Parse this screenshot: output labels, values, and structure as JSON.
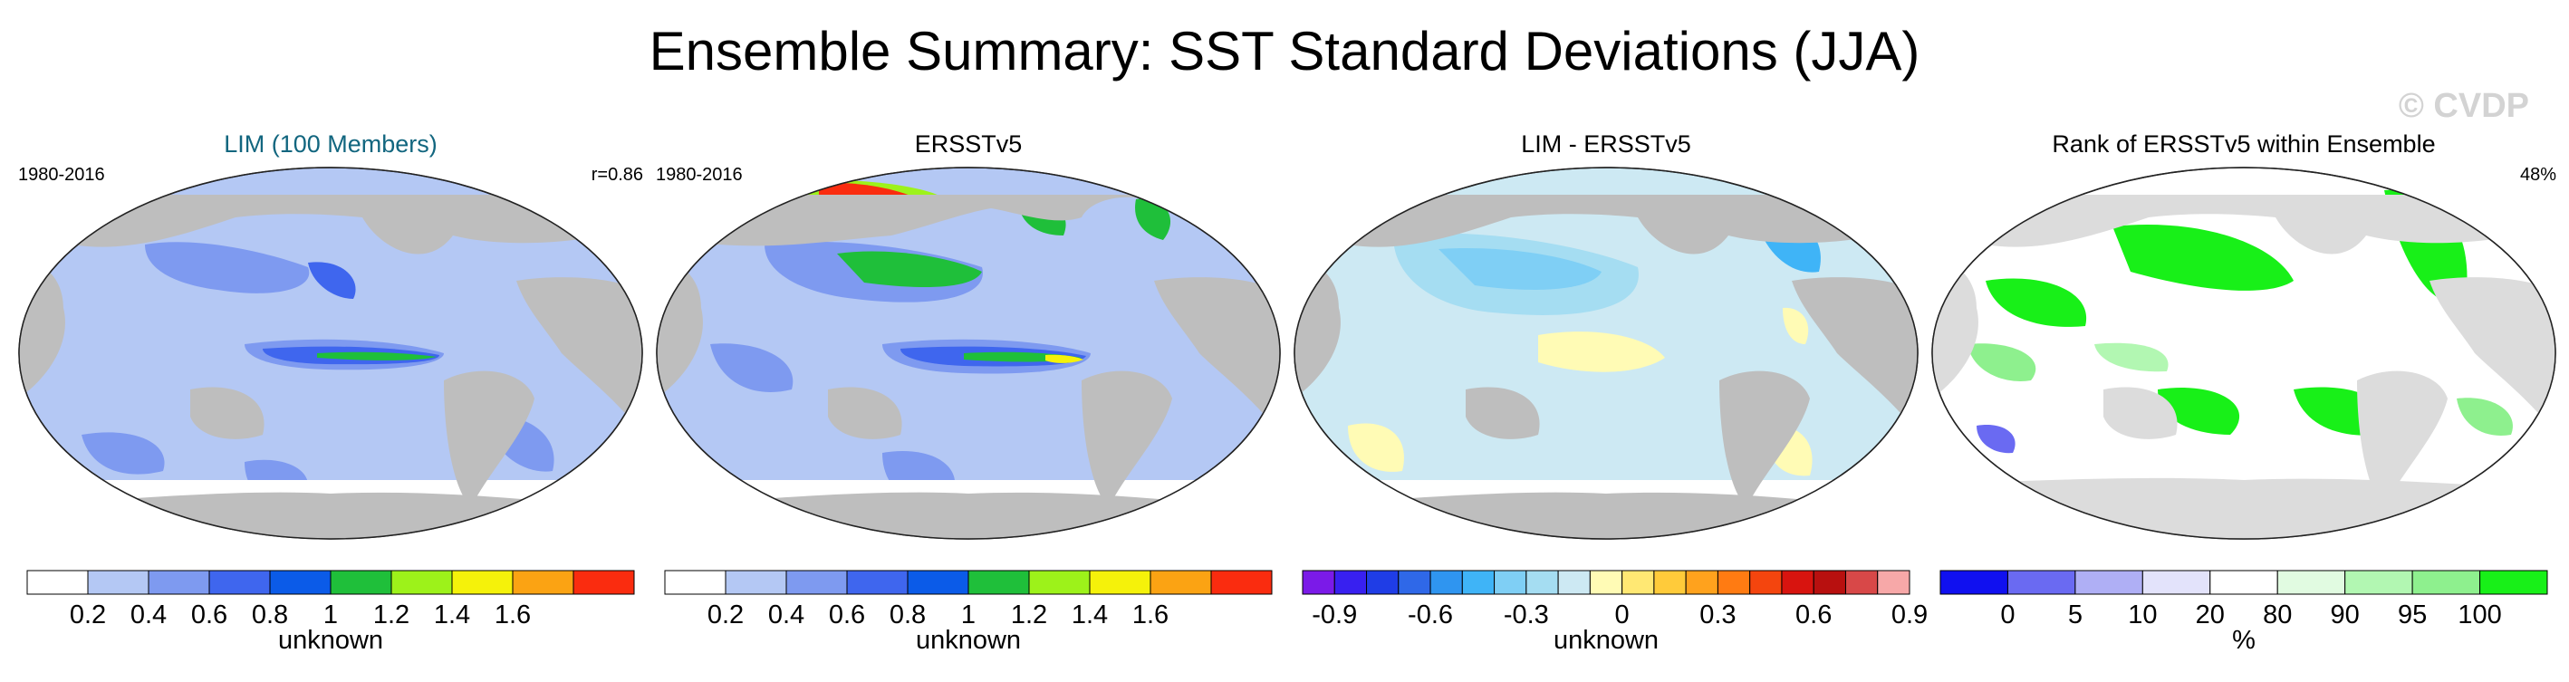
{
  "title": "Ensemble Summary: SST Standard Deviations (JJA)",
  "watermark": "© CVDP",
  "panels": [
    {
      "title": "LIM (100 Members)",
      "left_label": "1980-2016",
      "right_label": "r=0.86",
      "colorbar_unit": "unknown",
      "colorbar_ticks": [
        "0.2",
        "0.4",
        "0.6",
        "0.8",
        "1",
        "1.2",
        "1.4",
        "1.6"
      ],
      "colorbar_colors": [
        "#ffffff",
        "#b4c8f4",
        "#7e9af0",
        "#3f66ee",
        "#0b5be8",
        "#1fbf3a",
        "#9df21a",
        "#f5f20a",
        "#fba313",
        "#fa2c0f"
      ]
    },
    {
      "title": "ERSSTv5",
      "left_label": "1980-2016",
      "right_label": "",
      "colorbar_unit": "unknown",
      "colorbar_ticks": [
        "0.2",
        "0.4",
        "0.6",
        "0.8",
        "1",
        "1.2",
        "1.4",
        "1.6"
      ],
      "colorbar_colors": [
        "#ffffff",
        "#b4c8f4",
        "#7e9af0",
        "#3f66ee",
        "#0b5be8",
        "#1fbf3a",
        "#9df21a",
        "#f5f20a",
        "#fba313",
        "#fa2c0f"
      ]
    },
    {
      "title": "LIM - ERSSTv5",
      "left_label": "",
      "right_label": "",
      "colorbar_unit": "unknown",
      "colorbar_ticks": [
        "-0.9",
        "-0.6",
        "-0.3",
        "0",
        "0.3",
        "0.6",
        "0.9"
      ],
      "colorbar_colors": [
        "#7b1ae8",
        "#3820f0",
        "#1f3de6",
        "#2f68e8",
        "#2f95f0",
        "#3fb4f7",
        "#7fcff5",
        "#a5ddf2",
        "#cde9f3",
        "#fffbb5",
        "#ffe873",
        "#ffcb3a",
        "#ffa21d",
        "#ff7b12",
        "#f4450e",
        "#d8140f",
        "#b8100f",
        "#d84848",
        "#f7a8a8"
      ]
    },
    {
      "title": "Rank of ERSSTv5 within Ensemble",
      "left_label": "",
      "right_label": "48%",
      "colorbar_unit": "%",
      "colorbar_ticks": [
        "0",
        "5",
        "10",
        "20",
        "80",
        "90",
        "95",
        "100"
      ],
      "colorbar_colors": [
        "#1010f0",
        "#6a6af2",
        "#afaff5",
        "#e3e3fb",
        "#ffffff",
        "#e1fbe1",
        "#b2f7b2",
        "#8ef08e",
        "#18f018"
      ]
    }
  ]
}
